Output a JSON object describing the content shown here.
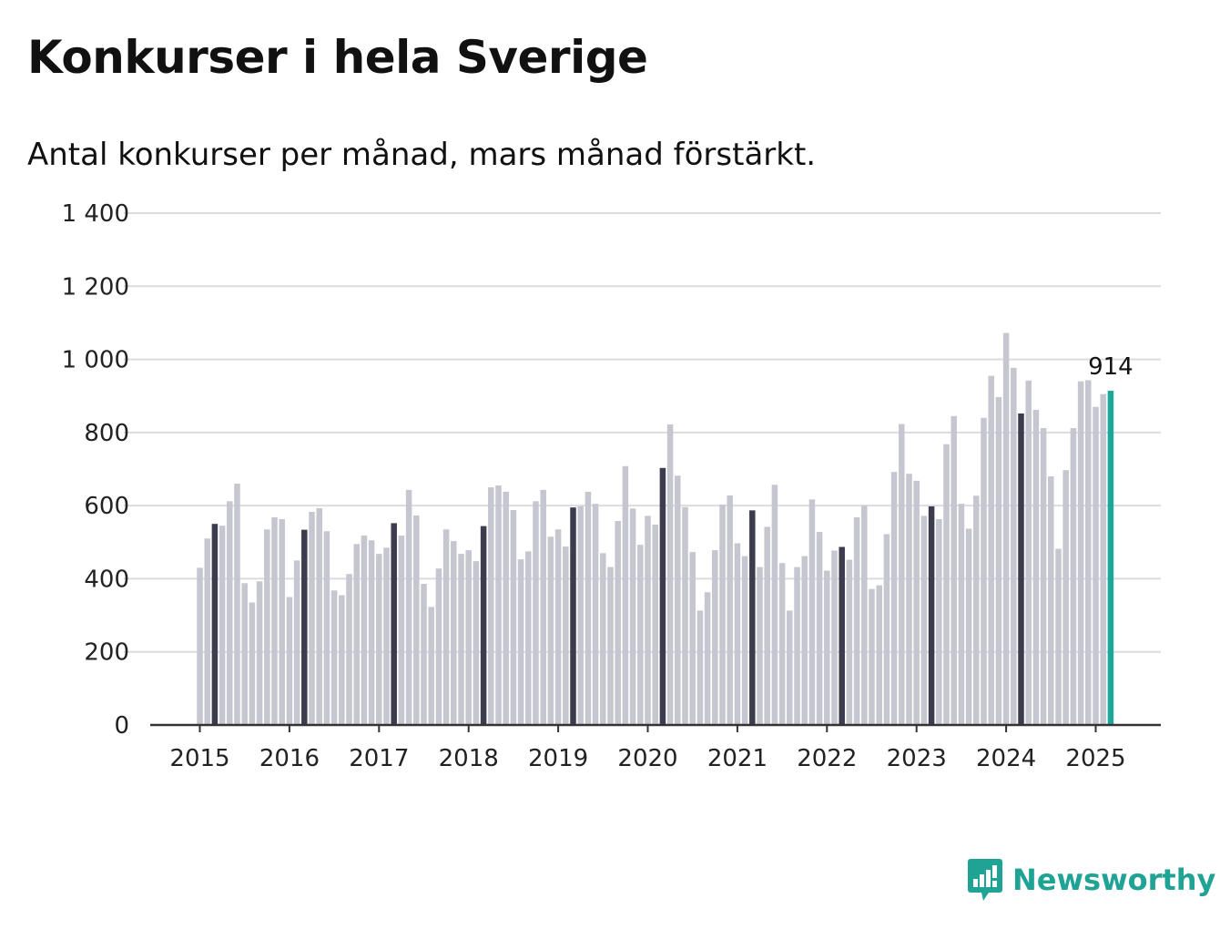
{
  "title": "Konkurser i hela Sverige",
  "subtitle": "Antal konkurser per månad, mars månad förstärkt.",
  "brand": {
    "name": "Newsworthy",
    "icon": "newsworthy-logo-icon",
    "color": "#1fa394"
  },
  "colors": {
    "bar": "#c6c6d0",
    "highlight": "#3d3c4e",
    "latest": "#1ba79a",
    "grid": "#dcdce0",
    "axis": "#333333"
  },
  "chart_data": {
    "type": "bar",
    "title": "Konkurser i hela Sverige",
    "subtitle": "Antal konkurser per månad, mars månad förstärkt.",
    "xlabel": "",
    "ylabel": "",
    "ylim": [
      0,
      1400
    ],
    "yticks": [
      0,
      200,
      400,
      600,
      800,
      1000,
      1200,
      1400
    ],
    "ytick_labels": [
      "0",
      "200",
      "400",
      "600",
      "800",
      "1 000",
      "1 200",
      "1 400"
    ],
    "xtick_labels": [
      "2015",
      "2016",
      "2017",
      "2018",
      "2019",
      "2020",
      "2021",
      "2022",
      "2023",
      "2024",
      "2025"
    ],
    "grid": true,
    "start": "2015-01",
    "highlight_month": "mars",
    "annotation": {
      "label": "914",
      "month": "2025-03",
      "value": 914
    },
    "values": [
      430,
      510,
      550,
      545,
      612,
      660,
      388,
      335,
      393,
      535,
      568,
      563,
      350,
      450,
      534,
      583,
      593,
      530,
      368,
      355,
      413,
      495,
      518,
      505,
      468,
      485,
      552,
      518,
      643,
      573,
      386,
      323,
      428,
      535,
      503,
      468,
      478,
      448,
      544,
      650,
      655,
      638,
      588,
      453,
      475,
      612,
      643,
      515,
      535,
      488,
      595,
      598,
      638,
      605,
      470,
      432,
      558,
      708,
      592,
      493,
      572,
      548,
      703,
      822,
      682,
      596,
      473,
      313,
      363,
      478,
      603,
      628,
      497,
      462,
      587,
      432,
      542,
      657,
      443,
      313,
      432,
      462,
      617,
      528,
      422,
      477,
      487,
      452,
      568,
      600,
      372,
      382,
      522,
      692,
      823,
      687,
      668,
      572,
      598,
      563,
      768,
      845,
      605,
      537,
      627,
      840,
      955,
      897,
      1072,
      977,
      852,
      942,
      862,
      812,
      680,
      482,
      697,
      812,
      940,
      943,
      870,
      905,
      914
    ]
  }
}
